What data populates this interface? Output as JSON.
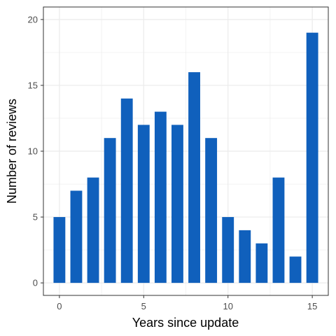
{
  "chart_data": {
    "type": "bar",
    "xlabel": "Years since update",
    "ylabel": "Number of reviews",
    "x": [
      0,
      1,
      2,
      3,
      4,
      5,
      6,
      7,
      8,
      9,
      10,
      11,
      12,
      13,
      14,
      15
    ],
    "values": [
      5,
      7,
      8,
      11,
      14,
      12,
      13,
      12,
      16,
      11,
      5,
      4,
      3,
      8,
      2,
      19
    ],
    "xlim": [
      -0.95,
      15.95
    ],
    "ylim": [
      -0.95,
      20.95
    ],
    "x_ticks": [
      0,
      5,
      10,
      15
    ],
    "y_ticks": [
      0,
      5,
      10,
      15,
      20
    ],
    "x_minor_ticks": [
      2.5,
      7.5,
      12.5
    ],
    "y_minor_ticks": [
      2.5,
      7.5,
      12.5,
      17.5
    ],
    "grid": true,
    "bar_color": "#1060BC",
    "grid_color": "#EBEBEB",
    "panel_border_color": "#333333",
    "background": "#FFFFFF"
  }
}
